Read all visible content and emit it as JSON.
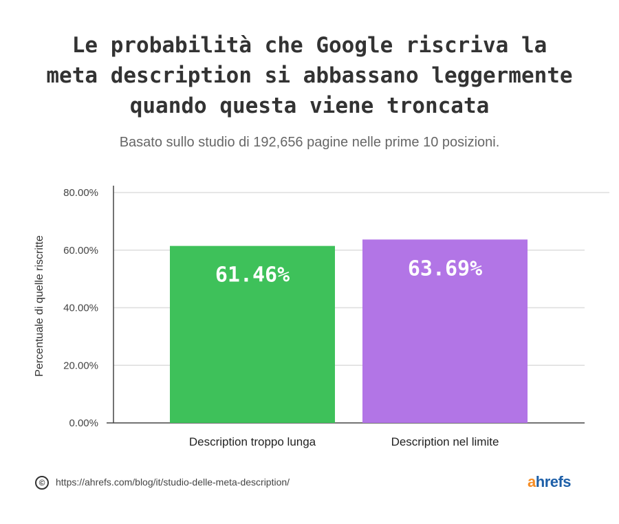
{
  "title_lines": [
    "Le probabilità che Google riscriva la",
    "meta description si abbassano leggermente",
    "quando questa viene troncata"
  ],
  "subtitle": "Basato sullo studio di 192,656 pagine nelle prime 10 posizioni.",
  "chart_data": {
    "type": "bar",
    "categories": [
      "Description troppo lunga",
      "Description nel limite"
    ],
    "values": [
      61.46,
      63.69
    ],
    "data_labels": [
      "61.46%",
      "63.69%"
    ],
    "colors": [
      "#3ec15a",
      "#b275e6"
    ],
    "ylabel": "Percentuale di quelle riscritte",
    "ylim": [
      0,
      80
    ],
    "yticks": [
      0,
      20,
      40,
      60,
      80
    ],
    "ytick_labels": [
      "0.00%",
      "20.00%",
      "40.00%",
      "60.00%",
      "80.00%"
    ],
    "grid": true
  },
  "footer": {
    "copyright_symbol": "©",
    "url": "https://ahrefs.com/blog/it/studio-delle-meta-description/",
    "logo_a": "a",
    "logo_rest": "hrefs"
  }
}
